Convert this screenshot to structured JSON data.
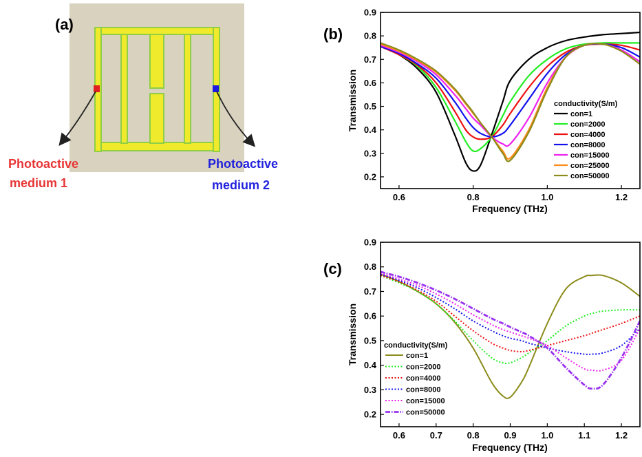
{
  "panel_a": {
    "label": "(a)",
    "medium1_line1": "Photoactive",
    "medium1_line2": "medium 1",
    "medium2_line1": "Photoactive",
    "medium2_line2": "medium 2",
    "colors": {
      "background": "#d8d2be",
      "metal": "#f0ea2c",
      "metal_edge": "#8fce45",
      "medium1": "#e02020",
      "medium2": "#1a1ae0"
    }
  },
  "chart_data": [
    {
      "id": "b",
      "panel_label": "(b)",
      "type": "line",
      "xlabel": "Frequency (THz)",
      "ylabel": "Transmission",
      "xlim": [
        0.55,
        1.25
      ],
      "ylim": [
        0.15,
        0.9
      ],
      "xticks": [
        0.6,
        0.8,
        1.0,
        1.2
      ],
      "xtick_labels": [
        "0.6",
        "0.8",
        "1.0",
        "1.2"
      ],
      "yticks": [
        0.2,
        0.3,
        0.4,
        0.5,
        0.6,
        0.7,
        0.8,
        0.9
      ],
      "ytick_labels": [
        "0.2",
        "0.3",
        "0.4",
        "0.5",
        "0.6",
        "0.7",
        "0.8",
        "0.9"
      ],
      "legend_title": "conductivity(S/m)",
      "legend_position": "right",
      "x": [
        0.55,
        0.6,
        0.65,
        0.7,
        0.75,
        0.78,
        0.8,
        0.82,
        0.85,
        0.88,
        0.9,
        0.95,
        1.0,
        1.05,
        1.1,
        1.15,
        1.2,
        1.25
      ],
      "series": [
        {
          "name": "con=1",
          "color": "#000000",
          "style": "solid",
          "values": [
            0.76,
            0.72,
            0.66,
            0.56,
            0.38,
            0.26,
            0.225,
            0.25,
            0.38,
            0.52,
            0.61,
            0.7,
            0.75,
            0.78,
            0.795,
            0.805,
            0.81,
            0.815
          ]
        },
        {
          "name": "con=2000",
          "color": "#22ee22",
          "style": "solid",
          "values": [
            0.755,
            0.72,
            0.67,
            0.58,
            0.44,
            0.35,
            0.31,
            0.32,
            0.37,
            0.46,
            0.52,
            0.63,
            0.7,
            0.745,
            0.765,
            0.77,
            0.77,
            0.77
          ]
        },
        {
          "name": "con=4000",
          "color": "#ee1111",
          "style": "solid",
          "values": [
            0.755,
            0.72,
            0.675,
            0.6,
            0.48,
            0.4,
            0.37,
            0.36,
            0.37,
            0.42,
            0.47,
            0.58,
            0.67,
            0.73,
            0.76,
            0.765,
            0.76,
            0.74
          ]
        },
        {
          "name": "con=8000",
          "color": "#1111ee",
          "style": "solid",
          "values": [
            0.755,
            0.725,
            0.68,
            0.62,
            0.52,
            0.45,
            0.41,
            0.385,
            0.37,
            0.385,
            0.42,
            0.53,
            0.64,
            0.72,
            0.76,
            0.765,
            0.75,
            0.71
          ]
        },
        {
          "name": "con=15000",
          "color": "#ee22ee",
          "style": "solid",
          "values": [
            0.76,
            0.73,
            0.69,
            0.635,
            0.55,
            0.49,
            0.45,
            0.42,
            0.37,
            0.34,
            0.34,
            0.45,
            0.6,
            0.71,
            0.76,
            0.765,
            0.74,
            0.69
          ]
        },
        {
          "name": "con=25000",
          "color": "#ff8c1a",
          "style": "solid",
          "values": [
            0.765,
            0.735,
            0.695,
            0.645,
            0.57,
            0.51,
            0.47,
            0.43,
            0.37,
            0.31,
            0.28,
            0.4,
            0.58,
            0.71,
            0.76,
            0.765,
            0.735,
            0.68
          ]
        },
        {
          "name": "con=50000",
          "color": "#8b8b1a",
          "style": "solid",
          "values": [
            0.77,
            0.74,
            0.7,
            0.65,
            0.575,
            0.515,
            0.475,
            0.43,
            0.37,
            0.3,
            0.27,
            0.39,
            0.57,
            0.71,
            0.76,
            0.765,
            0.735,
            0.68
          ]
        }
      ]
    },
    {
      "id": "c",
      "panel_label": "(c)",
      "type": "line",
      "xlabel": "Frequency (THz)",
      "ylabel": "Transmission",
      "xlim": [
        0.55,
        1.25
      ],
      "ylim": [
        0.15,
        0.9
      ],
      "xticks": [
        0.6,
        0.7,
        0.8,
        0.9,
        1.0,
        1.1,
        1.2
      ],
      "xtick_labels": [
        "0.6",
        "0.7",
        "0.8",
        "0.9",
        "1.0",
        "1.1",
        "1.2"
      ],
      "yticks": [
        0.2,
        0.3,
        0.4,
        0.5,
        0.6,
        0.7,
        0.8,
        0.9
      ],
      "ytick_labels": [
        "0.2",
        "0.3",
        "0.4",
        "0.5",
        "0.6",
        "0.7",
        "0.8",
        "0.9"
      ],
      "legend_title": "conductivity(S/m)",
      "legend_position": "bottom-left",
      "x": [
        0.55,
        0.6,
        0.65,
        0.7,
        0.75,
        0.8,
        0.85,
        0.88,
        0.9,
        0.93,
        0.95,
        1.0,
        1.05,
        1.1,
        1.12,
        1.15,
        1.2,
        1.25
      ],
      "series": [
        {
          "name": "con=1",
          "color": "#8b8b1a",
          "style": "solid",
          "values": [
            0.77,
            0.74,
            0.7,
            0.65,
            0.575,
            0.47,
            0.33,
            0.275,
            0.27,
            0.33,
            0.39,
            0.57,
            0.71,
            0.76,
            0.765,
            0.765,
            0.735,
            0.68
          ]
        },
        {
          "name": "con=2000",
          "color": "#22ee22",
          "style": "dotted",
          "values": [
            0.765,
            0.735,
            0.7,
            0.65,
            0.58,
            0.5,
            0.43,
            0.41,
            0.41,
            0.43,
            0.45,
            0.5,
            0.56,
            0.6,
            0.61,
            0.62,
            0.625,
            0.625
          ]
        },
        {
          "name": "con=4000",
          "color": "#ee1111",
          "style": "dotted",
          "values": [
            0.765,
            0.74,
            0.705,
            0.66,
            0.6,
            0.54,
            0.49,
            0.47,
            0.46,
            0.455,
            0.46,
            0.48,
            0.5,
            0.52,
            0.53,
            0.545,
            0.57,
            0.6
          ]
        },
        {
          "name": "con=8000",
          "color": "#1111ee",
          "style": "dotted",
          "values": [
            0.77,
            0.745,
            0.715,
            0.675,
            0.63,
            0.58,
            0.54,
            0.52,
            0.51,
            0.5,
            0.49,
            0.47,
            0.455,
            0.445,
            0.445,
            0.45,
            0.48,
            0.55
          ]
        },
        {
          "name": "con=15000",
          "color": "#ee22ee",
          "style": "dotted",
          "values": [
            0.775,
            0.75,
            0.725,
            0.69,
            0.65,
            0.605,
            0.565,
            0.545,
            0.535,
            0.52,
            0.51,
            0.48,
            0.43,
            0.385,
            0.38,
            0.38,
            0.42,
            0.55
          ]
        },
        {
          "name": "con=50000",
          "color": "#9933ee",
          "style": "dash-dot",
          "values": [
            0.78,
            0.76,
            0.735,
            0.705,
            0.67,
            0.63,
            0.59,
            0.57,
            0.555,
            0.535,
            0.52,
            0.47,
            0.39,
            0.32,
            0.305,
            0.32,
            0.43,
            0.58
          ]
        }
      ]
    }
  ]
}
